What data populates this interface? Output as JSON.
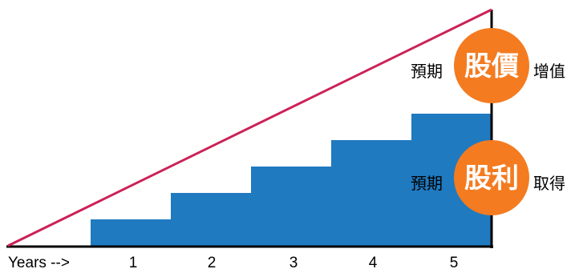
{
  "colors": {
    "steps": "#1f7ac0",
    "growth_line": "#cc2155",
    "badge": "#f47b20",
    "axis": "#000000",
    "background": "#ffffff"
  },
  "chart_data": {
    "type": "area",
    "x_label": "Years -->",
    "categories": [
      "1",
      "2",
      "3",
      "4",
      "5"
    ],
    "step_levels": [
      1,
      2,
      3,
      4,
      5
    ],
    "growth_line": "linear"
  },
  "labels": {
    "price": {
      "prefix": "預期",
      "highlight": "股價",
      "suffix": "增值"
    },
    "dividend": {
      "prefix": "預期",
      "highlight": "股利",
      "suffix": "取得"
    }
  }
}
